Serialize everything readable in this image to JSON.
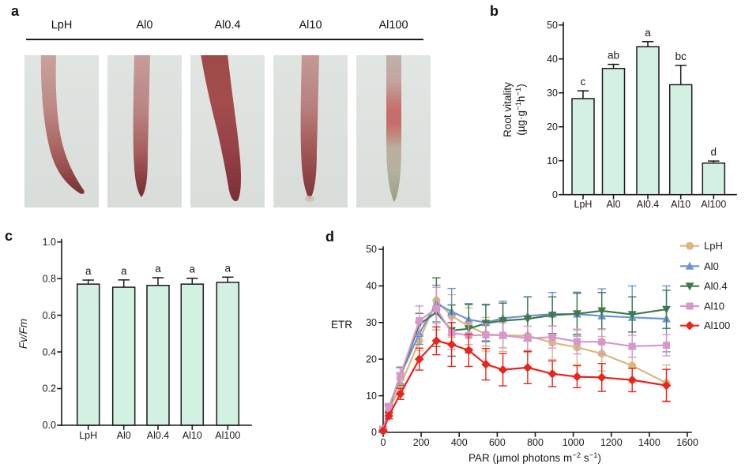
{
  "figure": {
    "panels": {
      "a": {
        "letter": "a",
        "treatments": [
          "LpH",
          "Al0",
          "Al0.4",
          "Al10",
          "Al100"
        ],
        "photo_description": "root tips stained red; Al100 tip unstained pale"
      },
      "b": {
        "letter": "b"
      },
      "c": {
        "letter": "c"
      },
      "d": {
        "letter": "d"
      }
    }
  },
  "colors": {
    "axis": "#1a1a1a",
    "bar_fill": "#d3f1e2",
    "photo_bg_top": "#e1e5e2",
    "photo_bg_bottom": "#d9ddda"
  },
  "chart_data": [
    {
      "id": "b",
      "type": "bar",
      "ylabel_line1": "Root  vitality",
      "ylabel_line2_segments": [
        {
          "t": "(µg·g"
        },
        {
          "t": "−1",
          "sup": true
        },
        {
          "t": "h"
        },
        {
          "t": "−1",
          "sup": true
        },
        {
          "t": ")"
        }
      ],
      "categories": [
        "LpH",
        "Al0",
        "Al0.4",
        "Al10",
        "Al100"
      ],
      "values": [
        28.3,
        37.2,
        43.6,
        32.4,
        9.3
      ],
      "errors": [
        2.3,
        1.2,
        1.5,
        5.7,
        0.6
      ],
      "sig_letters": [
        "c",
        "ab",
        "a",
        "bc",
        "d"
      ],
      "ylim": [
        0,
        50
      ],
      "yticks": [
        0,
        10,
        20,
        30,
        40,
        50
      ],
      "ydecimals": 0,
      "grid": false
    },
    {
      "id": "c",
      "type": "bar",
      "ylabel_italic": "Fv/Fm",
      "categories": [
        "LpH",
        "Al0",
        "Al0.4",
        "Al10",
        "Al100"
      ],
      "values": [
        0.77,
        0.753,
        0.763,
        0.77,
        0.78
      ],
      "errors": [
        0.022,
        0.04,
        0.042,
        0.032,
        0.028
      ],
      "sig_letters": [
        "a",
        "a",
        "a",
        "a",
        "a"
      ],
      "ylim": [
        0,
        1.0
      ],
      "yticks": [
        0,
        0.2,
        0.4,
        0.6,
        0.8,
        1.0
      ],
      "ydecimals": 1,
      "grid": false
    },
    {
      "id": "d",
      "type": "line",
      "ylabel": "ETR",
      "xlabel_segments": [
        {
          "t": "PAR (µmol photons m"
        },
        {
          "t": "−2",
          "sup": true
        },
        {
          "t": " s"
        },
        {
          "t": "−1",
          "sup": true
        },
        {
          "t": ")"
        }
      ],
      "x": [
        0,
        30,
        90,
        190,
        280,
        360,
        450,
        540,
        630,
        760,
        890,
        1020,
        1150,
        1310,
        1490
      ],
      "xlim": [
        0,
        1600
      ],
      "xticks": [
        0,
        200,
        400,
        600,
        800,
        1000,
        1200,
        1400,
        1600
      ],
      "ylim": [
        0,
        50
      ],
      "yticks": [
        0,
        10,
        20,
        30,
        40,
        50
      ],
      "legend_position": "right",
      "grid": false,
      "series": [
        {
          "name": "LpH",
          "marker": "circle",
          "color": "#DDB77C",
          "values": [
            0.4,
            6.0,
            12.7,
            25.0,
            36.0,
            31.8,
            29.0,
            26.8,
            26.5,
            26.4,
            24.5,
            23.2,
            21.5,
            18.2,
            13.5
          ],
          "errors": [
            0.3,
            0.9,
            1.5,
            2.6,
            6.2,
            5.8,
            5.0,
            4.6,
            4.4,
            4.6,
            4.6,
            4.7,
            4.7,
            4.6,
            4.9
          ]
        },
        {
          "name": "Al0",
          "marker": "triangle-up",
          "color": "#6B95D5",
          "values": [
            0.7,
            6.3,
            15.5,
            27.0,
            35.2,
            33.0,
            30.8,
            30.0,
            31.2,
            31.8,
            32.3,
            32.3,
            31.8,
            31.4,
            31.0
          ],
          "errors": [
            0.3,
            1.0,
            2.2,
            3.0,
            5.0,
            6.3,
            4.4,
            5.0,
            4.6,
            5.2,
            5.9,
            6.0,
            7.4,
            8.6,
            9.0
          ]
        },
        {
          "name": "Al0.4",
          "marker": "triangle-down",
          "color": "#41794F",
          "values": [
            0.8,
            6.6,
            15.3,
            29.5,
            32.8,
            27.8,
            28.3,
            29.8,
            30.5,
            31.0,
            32.0,
            32.4,
            33.2,
            32.2,
            33.6
          ],
          "errors": [
            0.3,
            1.0,
            2.4,
            3.0,
            9.4,
            7.0,
            6.6,
            5.0,
            4.8,
            6.0,
            5.0,
            5.6,
            5.0,
            4.8,
            5.2
          ]
        },
        {
          "name": "Al10",
          "marker": "square",
          "color": "#D897CB",
          "values": [
            0.8,
            6.9,
            15.5,
            30.5,
            33.8,
            27.2,
            26.5,
            26.6,
            26.5,
            25.7,
            26.0,
            24.8,
            24.7,
            23.5,
            23.8
          ],
          "errors": [
            0.3,
            1.0,
            2.4,
            4.0,
            5.8,
            4.6,
            3.6,
            3.0,
            3.4,
            3.3,
            3.0,
            3.4,
            3.4,
            3.0,
            2.9
          ]
        },
        {
          "name": "Al100",
          "marker": "diamond",
          "color": "#E6261F",
          "values": [
            0.4,
            4.5,
            10.5,
            20.0,
            25.0,
            24.0,
            22.4,
            18.6,
            17.1,
            17.7,
            16.0,
            15.2,
            15.0,
            14.3,
            12.8
          ],
          "errors": [
            0.2,
            0.8,
            1.5,
            3.0,
            3.8,
            6.0,
            4.4,
            4.3,
            4.4,
            4.4,
            3.5,
            3.0,
            3.8,
            3.2,
            4.4
          ]
        }
      ]
    }
  ]
}
